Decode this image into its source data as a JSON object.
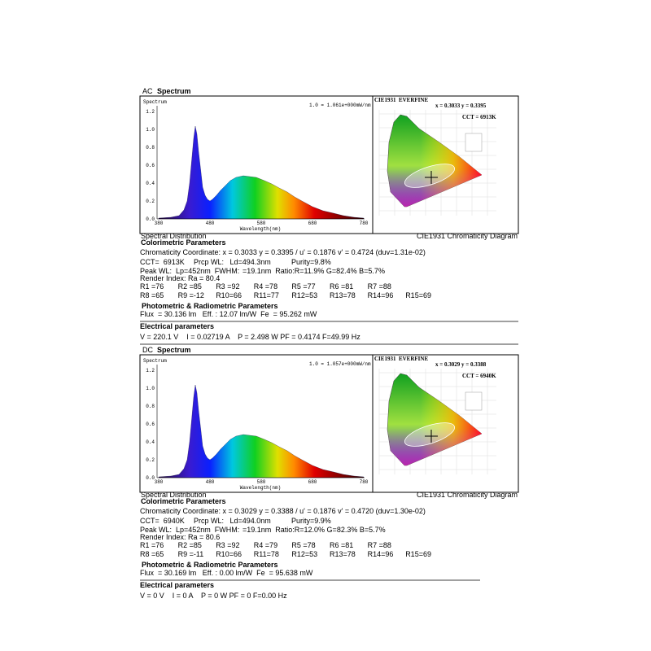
{
  "sections": [
    {
      "source": "AC",
      "title": "Spectrum",
      "spectrum": {
        "ylabel": "Spectrum",
        "scale_note": "1.0 = 1.061e+000mW/nm",
        "xlabel": "Wavelength(nm)",
        "yticks": [
          "1.2",
          "1.0",
          "0.8",
          "0.6",
          "0.4",
          "0.2",
          "0.0"
        ],
        "xticks": [
          "380",
          "480",
          "580",
          "680",
          "780"
        ],
        "caption": "Spectral Distribution"
      },
      "cie": {
        "header": "CIE1931  EVERFINE",
        "coords": "x = 0.3033 y = 0.3395",
        "cct": "CCT = 6913K",
        "caption": "CIE1931 Chromaticity Diagram"
      },
      "colorimetric": {
        "title": "Colorimetric Parameters",
        "coordinates": "Chromaticity Coordinate: x = 0.3033 y = 0.3395 / u' = 0.1876 v' = 0.4724 (duv=1.31e-02)",
        "cct_line": [
          "CCT=  6913K",
          "Prcp WL:   Ld=494.3nm",
          "Purity=9.8%"
        ],
        "peak_line": [
          "Peak WL:  Lp=452nm  FWHM:",
          "=19.1nm  Ratio:R=11.9% G=82.4% B=5.7%"
        ],
        "render_index": "Render Index: Ra = 80.4",
        "r_values": [
          [
            "R1 =76",
            "R2 =85",
            "R3 =92",
            "R4 =78",
            "R5 =77",
            "R6 =81",
            "R7 =88"
          ],
          [
            "R8 =65",
            "R9 =-12",
            "R10=66",
            "R11=77",
            "R12=53",
            "R13=78",
            "R14=96",
            "R15=69"
          ]
        ]
      },
      "photometric": {
        "title": "Photometric & Radiometric Parameters",
        "values": "Flux  = 30.136 lm   Eff. : 12.07 lm/W  Fe  = 95.262 mW"
      },
      "electrical": {
        "title": "Electrical parameters",
        "values": "V = 220.1 V    I = 0.02719 A    P = 2.498 W PF = 0.4174 F=49.99 Hz"
      }
    },
    {
      "source": "DC",
      "title": "Spectrum",
      "spectrum": {
        "ylabel": "Spectrum",
        "scale_note": "1.0 = 1.057e+000mW/nm",
        "xlabel": "Wavelength(nm)",
        "yticks": [
          "1.2",
          "1.0",
          "0.8",
          "0.6",
          "0.4",
          "0.2",
          "0.0"
        ],
        "xticks": [
          "380",
          "480",
          "580",
          "680",
          "780"
        ],
        "caption": "Spectral Distribution"
      },
      "cie": {
        "header": "CIE1931  EVERFINE",
        "coords": "x = 0.3029 y = 0.3388",
        "cct": "CCT = 6940K",
        "caption": "CIE1931 Chromaticity Diagram"
      },
      "colorimetric": {
        "title": "Colorimetric Parameters",
        "coordinates": "Chromaticity Coordinate: x = 0.3029 y = 0.3388 / u' = 0.1876 v' = 0.4720 (duv=1.30e-02)",
        "cct_line": [
          "CCT=  6940K",
          "Prcp WL:   Ld=494.0nm",
          "Purity=9.9%"
        ],
        "peak_line": [
          "Peak WL:  Lp=452nm  FWHM:",
          "=19.1nm  Ratio:R=12.0% G=82.3% B=5.7%"
        ],
        "render_index": "Render Index: Ra = 80.6",
        "r_values": [
          [
            "R1 =76",
            "R2 =85",
            "R3 =92",
            "R4 =79",
            "R5 =78",
            "R6 =81",
            "R7 =88"
          ],
          [
            "R8 =65",
            "R9 =-11",
            "R10=66",
            "R11=78",
            "R12=53",
            "R13=78",
            "R14=96",
            "R15=69"
          ]
        ]
      },
      "photometric": {
        "title": "Photometric & Radiometric Parameters",
        "values": "Flux  = 30.169 lm   Eff. : 0.00 lm/W  Fe  = 95.638 mW"
      },
      "electrical": {
        "title": "Electrical parameters",
        "values": "V = 0 V    I = 0 A    P = 0 W PF = 0 F=0.00 Hz"
      }
    }
  ]
}
